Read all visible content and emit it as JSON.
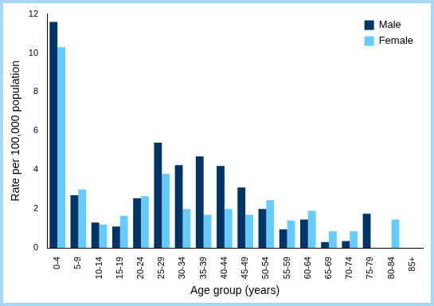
{
  "chart_data": {
    "type": "bar",
    "x_label": "Age group (years)",
    "y_label": "Rate per 100,000 population",
    "categories": [
      "0-4",
      "5-9",
      "10-14",
      "15-19",
      "20-24",
      "25-29",
      "30-34",
      "35-39",
      "40-44",
      "45-49",
      "50-54",
      "55-59",
      "60-64",
      "65-69",
      "70-74",
      "75-79",
      "80-84",
      "85+"
    ],
    "series": [
      {
        "name": "Male",
        "color": "#003366",
        "values": [
          11.6,
          2.7,
          1.3,
          1.1,
          2.55,
          5.4,
          4.25,
          4.7,
          4.2,
          3.1,
          2.0,
          0.95,
          1.45,
          0.3,
          0.35,
          1.75,
          0,
          0
        ]
      },
      {
        "name": "Female",
        "color": "#66ccff",
        "values": [
          10.3,
          3.0,
          1.2,
          1.65,
          2.65,
          3.8,
          2.0,
          1.7,
          2.0,
          1.7,
          2.45,
          1.4,
          1.9,
          0.85,
          0.85,
          0,
          1.45,
          0
        ]
      }
    ],
    "ylim": [
      0,
      12
    ],
    "yticks": [
      0,
      2,
      4,
      6,
      8,
      10,
      12
    ],
    "grid": false,
    "legend": "upper right"
  }
}
